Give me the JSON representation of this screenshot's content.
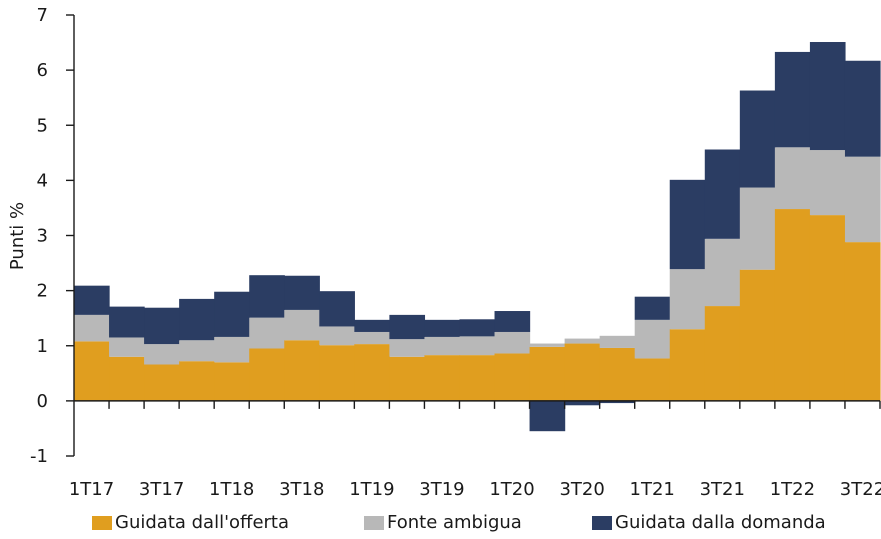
{
  "chart_data": {
    "type": "bar",
    "stacked": true,
    "step_style": true,
    "ylabel": "Punti %",
    "ylim": [
      -1,
      7
    ],
    "yticks": [
      -1,
      0,
      1,
      2,
      3,
      4,
      5,
      6,
      7
    ],
    "ytick_labels": [
      "-1",
      "0",
      "1",
      "2",
      "3",
      "4",
      "5",
      "6",
      "7"
    ],
    "categories": [
      "1T17",
      "2T17",
      "3T17",
      "4T17",
      "1T18",
      "2T18",
      "3T18",
      "4T18",
      "1T19",
      "2T19",
      "3T19",
      "4T19",
      "1T20",
      "2T20",
      "3T20",
      "4T20",
      "1T21",
      "2T21",
      "3T21",
      "4T21",
      "1T22",
      "2T22",
      "3T22"
    ],
    "xtick_labels": [
      "1T17",
      "3T17",
      "1T18",
      "3T18",
      "1T19",
      "3T19",
      "1T20",
      "3T20",
      "1T21",
      "3T21",
      "1T22",
      "3T22"
    ],
    "series": [
      {
        "name": "Guidata dall'offerta",
        "color": "#e09e1f",
        "values": [
          1.08,
          0.8,
          0.66,
          0.72,
          0.7,
          0.95,
          1.1,
          1.01,
          1.03,
          0.8,
          0.83,
          0.83,
          0.86,
          0.98,
          1.04,
          0.96,
          0.77,
          1.3,
          1.72,
          2.38,
          3.48,
          3.37,
          2.88
        ]
      },
      {
        "name": "Fonte ambigua",
        "color": "#b8b8b8",
        "values": [
          0.48,
          0.35,
          0.37,
          0.38,
          0.46,
          0.56,
          0.55,
          0.34,
          0.22,
          0.32,
          0.33,
          0.34,
          0.39,
          0.06,
          0.09,
          0.22,
          0.7,
          1.09,
          1.22,
          1.49,
          1.12,
          1.18,
          1.55
        ]
      },
      {
        "name": "Guidata dalla domanda",
        "color": "#2b3d63",
        "values": [
          0.53,
          0.56,
          0.66,
          0.75,
          0.82,
          0.77,
          0.62,
          0.64,
          0.22,
          0.44,
          0.31,
          0.31,
          0.38,
          -0.55,
          -0.08,
          -0.04,
          0.42,
          1.62,
          1.62,
          1.76,
          1.73,
          1.96,
          1.74
        ]
      }
    ]
  },
  "legend": {
    "items": [
      {
        "label": "Guidata dall'offerta",
        "color": "#e09e1f"
      },
      {
        "label": "Fonte ambigua",
        "color": "#b8b8b8"
      },
      {
        "label": "Guidata dalla domanda",
        "color": "#2b3d63"
      }
    ]
  }
}
